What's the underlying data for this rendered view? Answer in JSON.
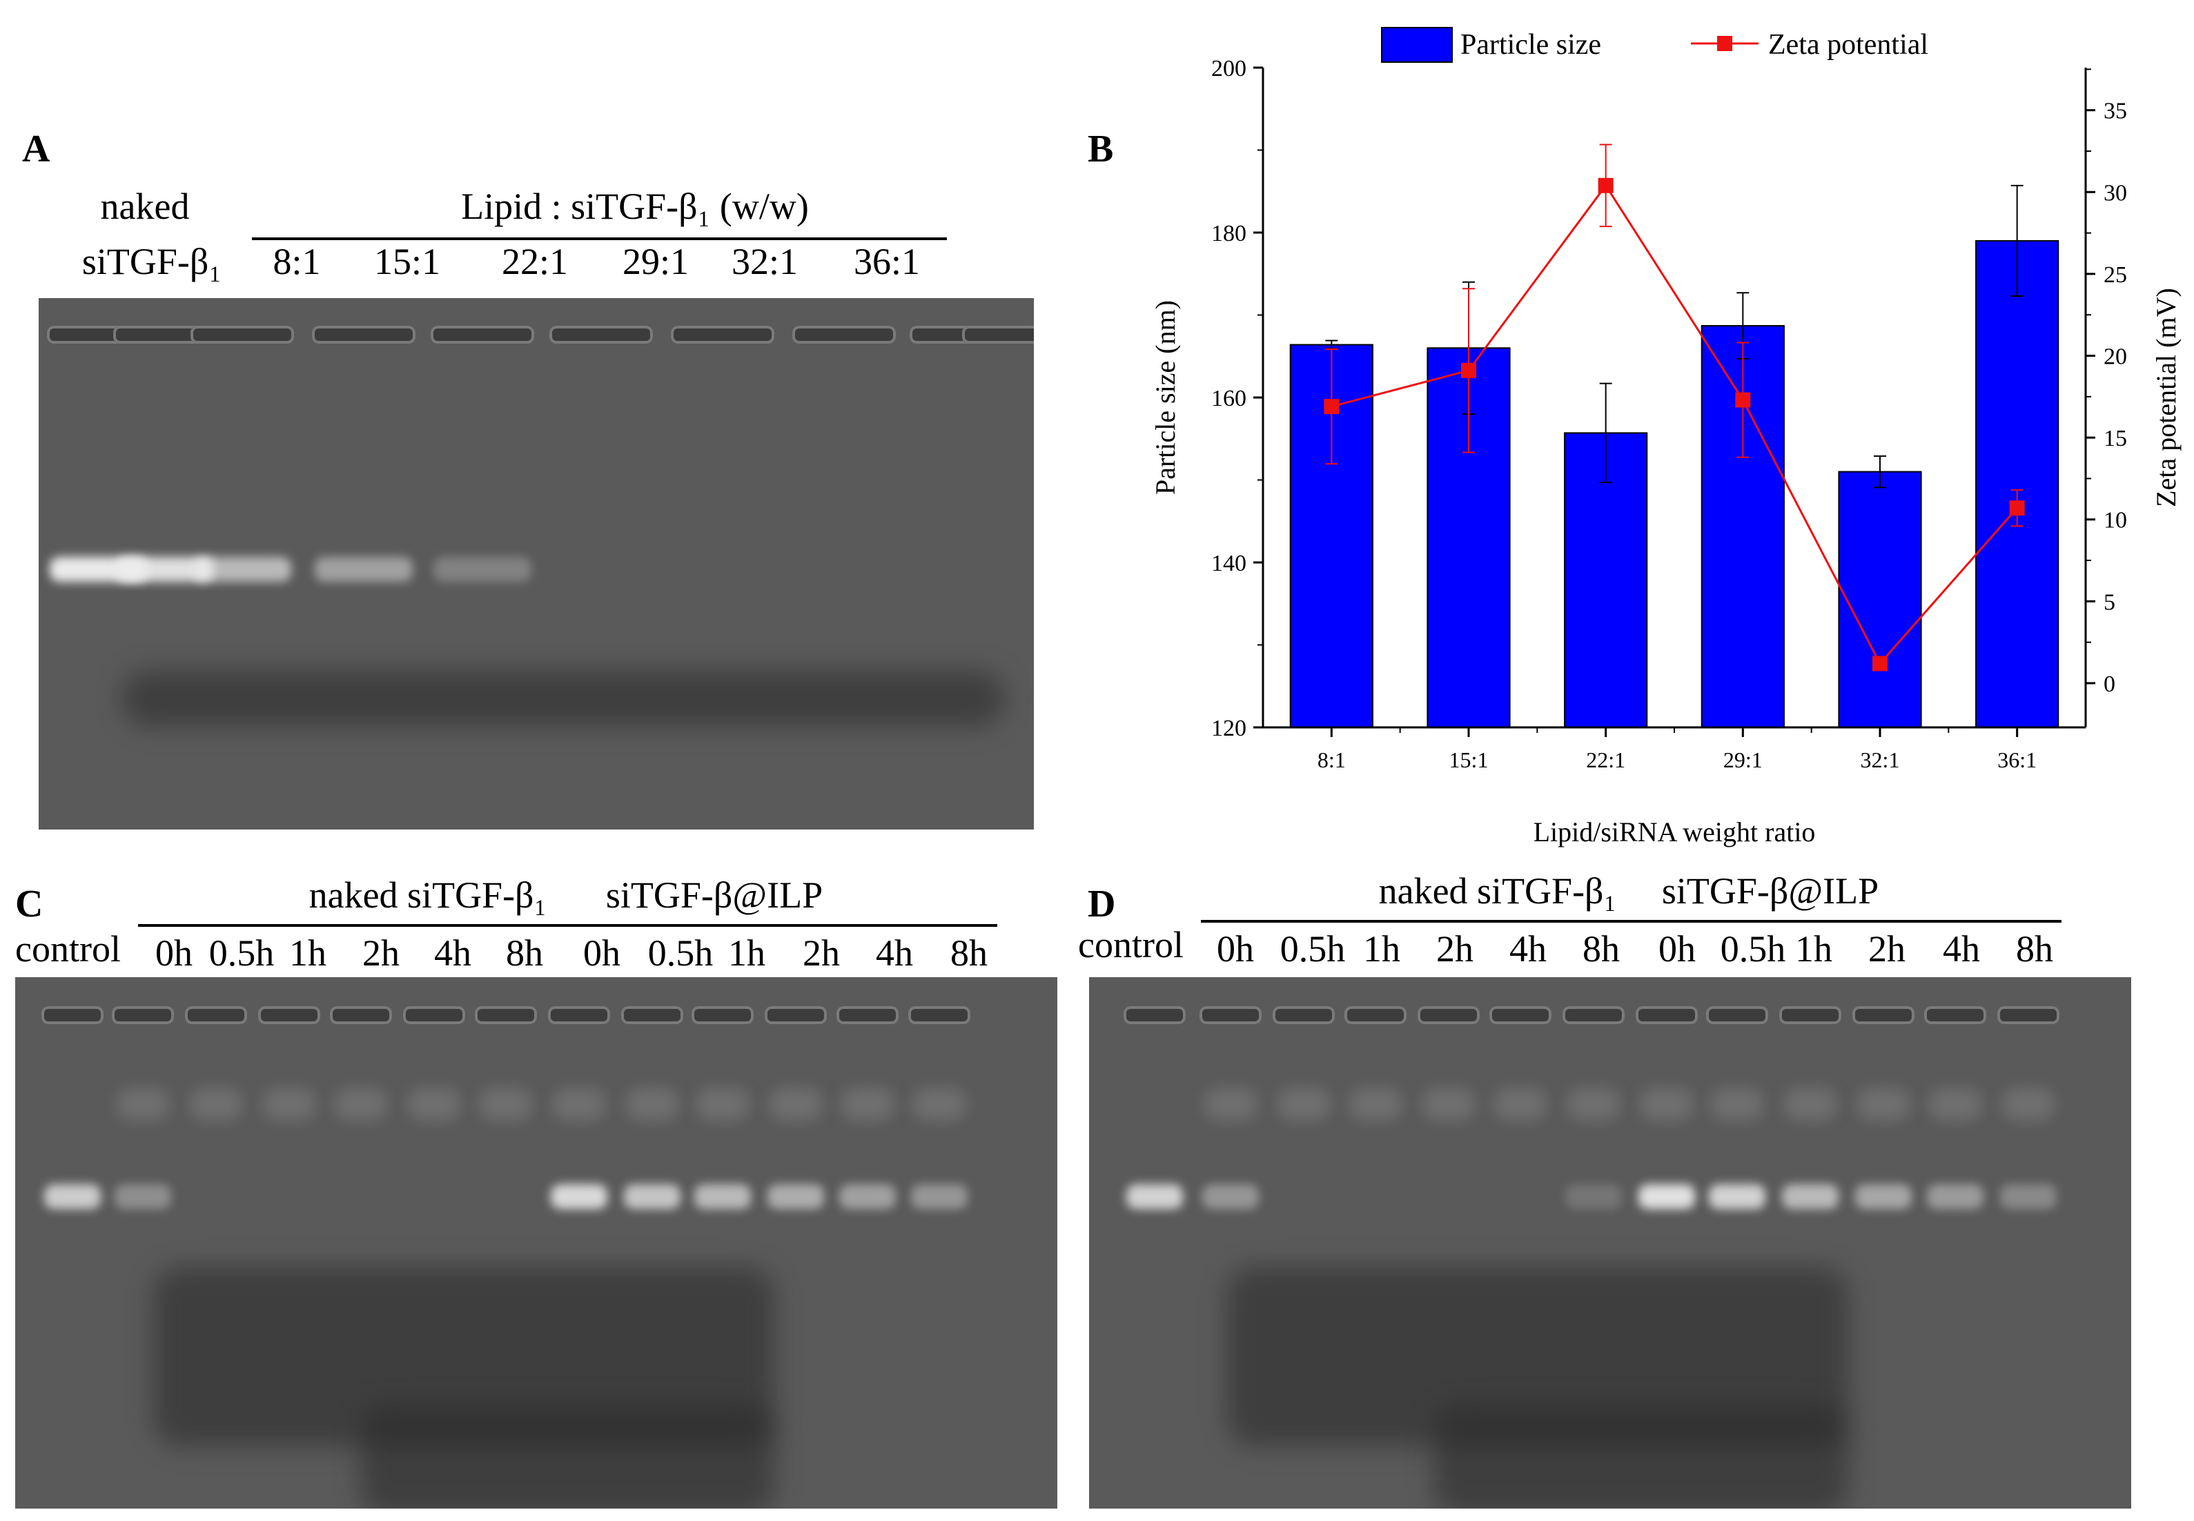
{
  "panels": {
    "A": {
      "letter": "A",
      "header_left_top": "naked",
      "header_left_bottom": "siTGF-β₁",
      "group_label": "Lipid : siTGF-β₁ (w/w)",
      "lanes": [
        "8:1",
        "15:1",
        "22:1",
        "29:1",
        "32:1",
        "36:1"
      ],
      "band_intensity": [
        1.0,
        0.9,
        0.6,
        0.4,
        0.15,
        0.0,
        0.0
      ]
    },
    "B": {
      "letter": "B"
    },
    "C": {
      "letter": "C",
      "control_label": "control",
      "group1_label": "naked siTGF-β₁",
      "group2_label": "siTGF-β@ILP",
      "lanes": [
        "0h",
        "0.5h",
        "1h",
        "2h",
        "4h",
        "8h",
        "0h",
        "0.5h",
        "1h",
        "2h",
        "4h",
        "8h"
      ],
      "band_intensity": [
        0.75,
        0.25,
        0.0,
        0.0,
        0.0,
        0.0,
        0.0,
        0.85,
        0.7,
        0.6,
        0.5,
        0.4,
        0.3
      ]
    },
    "D": {
      "letter": "D",
      "control_label": "control",
      "group1_label": "naked siTGF-β₁",
      "group2_label": "siTGF-β@ILP",
      "lanes": [
        "0h",
        "0.5h",
        "1h",
        "2h",
        "4h",
        "8h",
        "0h",
        "0.5h",
        "1h",
        "2h",
        "4h",
        "8h"
      ],
      "band_intensity": [
        0.8,
        0.3,
        0.0,
        0.0,
        0.0,
        0.0,
        0.05,
        0.9,
        0.8,
        0.6,
        0.45,
        0.35,
        0.2
      ]
    }
  },
  "chart_data": {
    "type": "bar",
    "categories": [
      "8:1",
      "15:1",
      "22:1",
      "29:1",
      "32:1",
      "36:1"
    ],
    "xlabel": "Lipid/siRNA weight ratio",
    "ylabel": "Particle size (nm)",
    "y2label": "Zeta potential (mV)",
    "ylim": [
      120,
      200
    ],
    "y2lim": [
      -2.7,
      37.6
    ],
    "yticks": [
      120,
      140,
      160,
      180,
      200
    ],
    "y2ticks": [
      0,
      5,
      10,
      15,
      20,
      25,
      30,
      35
    ],
    "legend_position": "top",
    "series": [
      {
        "name": "Particle size",
        "kind": "bar",
        "color": "#0000ff",
        "values": [
          166.4,
          166.0,
          155.7,
          168.7,
          151.0,
          179.0
        ],
        "errors": [
          0.5,
          8.0,
          6.0,
          4.0,
          1.9,
          6.7
        ]
      },
      {
        "name": "Zeta potential",
        "kind": "line",
        "color": "#ee1111",
        "axis": "right",
        "values": [
          16.9,
          19.1,
          30.4,
          17.3,
          1.2,
          10.7
        ],
        "errors": [
          3.5,
          5.0,
          2.5,
          3.5,
          0.0,
          1.1
        ]
      }
    ]
  }
}
